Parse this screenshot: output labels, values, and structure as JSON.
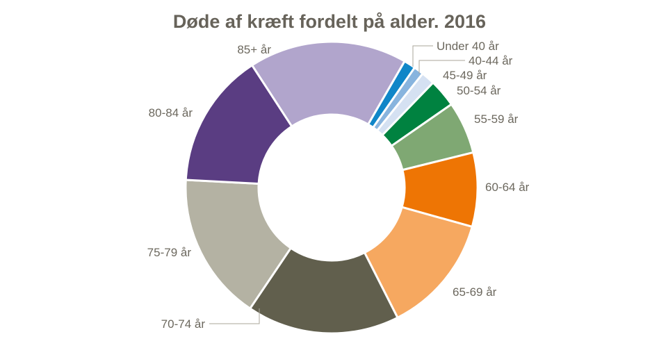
{
  "title": "Døde af kræft fordelt på alder. 2016",
  "chart_data": {
    "type": "pie",
    "subtype": "donut",
    "title": "Døde af kræft fordelt på alder. 2016",
    "categories": [
      "Under 40 år",
      "40-44 år",
      "45-49 år",
      "50-54 år",
      "55-59 år",
      "60-64 år",
      "65-69 år",
      "70-74 år",
      "75-79 år",
      "80-84 år",
      "85+ år"
    ],
    "values": [
      1.3,
      1.1,
      1.5,
      3.1,
      5.8,
      8.2,
      13.2,
      16.9,
      16.4,
      15.0,
      17.5
    ],
    "unit": "percent-of-total (estimated from slice angles)",
    "start_angle_deg": 30,
    "direction": "clockwise",
    "inner_radius_ratio": 0.5,
    "slice_colors": [
      "#1086c8",
      "#88b4de",
      "#d5e1f2",
      "#008240",
      "#7fa873",
      "#ee7504",
      "#f6a860",
      "#615f4d",
      "#b4b2a3",
      "#5a3d82",
      "#b1a5cc"
    ],
    "title_color": "#67635a",
    "label_color": "#6c685e",
    "leader_line_color": "#a8a59a",
    "background": "#ffffff",
    "legend_position": "outside-labels",
    "grid": false
  }
}
